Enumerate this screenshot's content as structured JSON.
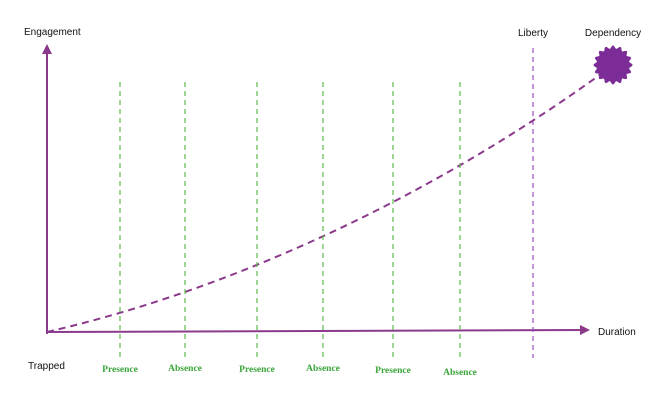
{
  "axes": {
    "y_label": "Engagement",
    "x_label": "Duration",
    "origin_label": "Trapped"
  },
  "phases": [
    {
      "label": "Presence"
    },
    {
      "label": "Absence"
    },
    {
      "label": "Presence"
    },
    {
      "label": "Absence"
    },
    {
      "label": "Presence"
    },
    {
      "label": "Absence"
    }
  ],
  "threshold": {
    "label": "Liberty"
  },
  "endpoint": {
    "label": "Dependency"
  }
}
